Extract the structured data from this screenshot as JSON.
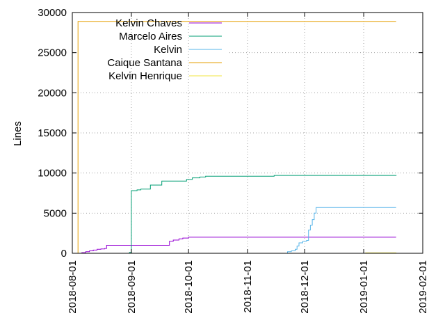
{
  "chart_data": {
    "type": "line",
    "title": "",
    "xlabel": "",
    "ylabel": "Lines",
    "ylim": [
      0,
      30000
    ],
    "xlim": [
      "2018-08-01",
      "2019-02-01"
    ],
    "yticks": [
      0,
      5000,
      10000,
      15000,
      20000,
      25000,
      30000
    ],
    "xticks": [
      "2018-08-01",
      "2018-09-01",
      "2018-10-01",
      "2018-11-01",
      "2018-12-01",
      "2019-01-01",
      "2019-02-01"
    ],
    "grid": true,
    "legend_position": "top-left",
    "series": [
      {
        "name": "Kelvin Chaves",
        "color": "#9400d3",
        "points": [
          [
            "2018-08-04",
            0
          ],
          [
            "2018-08-06",
            80
          ],
          [
            "2018-08-08",
            200
          ],
          [
            "2018-08-10",
            300
          ],
          [
            "2018-08-12",
            400
          ],
          [
            "2018-08-14",
            500
          ],
          [
            "2018-08-16",
            550
          ],
          [
            "2018-08-18",
            600
          ],
          [
            "2018-08-19",
            1000
          ],
          [
            "2018-09-20",
            1000
          ],
          [
            "2018-09-21",
            1500
          ],
          [
            "2018-09-23",
            1650
          ],
          [
            "2018-09-26",
            1800
          ],
          [
            "2018-09-28",
            1900
          ],
          [
            "2018-10-01",
            2000
          ],
          [
            "2019-01-18",
            2000
          ]
        ]
      },
      {
        "name": "Marcelo Aires",
        "color": "#009e73",
        "points": [
          [
            "2018-08-28",
            0
          ],
          [
            "2018-08-31",
            100
          ],
          [
            "2018-09-01",
            7800
          ],
          [
            "2018-09-04",
            7900
          ],
          [
            "2018-09-06",
            8000
          ],
          [
            "2018-09-11",
            8500
          ],
          [
            "2018-09-17",
            9000
          ],
          [
            "2018-09-30",
            9200
          ],
          [
            "2018-10-03",
            9400
          ],
          [
            "2018-10-07",
            9500
          ],
          [
            "2018-10-10",
            9600
          ],
          [
            "2018-11-15",
            9700
          ],
          [
            "2019-01-18",
            9750
          ]
        ]
      },
      {
        "name": "Kelvin",
        "color": "#56b4e9",
        "points": [
          [
            "2018-11-20",
            0
          ],
          [
            "2018-11-22",
            200
          ],
          [
            "2018-11-24",
            300
          ],
          [
            "2018-11-26",
            500
          ],
          [
            "2018-11-27",
            900
          ],
          [
            "2018-11-28",
            1300
          ],
          [
            "2018-11-30",
            1500
          ],
          [
            "2018-12-02",
            1600
          ],
          [
            "2018-12-03",
            2900
          ],
          [
            "2018-12-04",
            3500
          ],
          [
            "2018-12-05",
            4200
          ],
          [
            "2018-12-06",
            5000
          ],
          [
            "2018-12-07",
            5700
          ],
          [
            "2019-01-18",
            5700
          ]
        ]
      },
      {
        "name": "Caique Santana",
        "color": "#e69f00",
        "points": [
          [
            "2018-08-04",
            0
          ],
          [
            "2018-08-04",
            28900
          ],
          [
            "2019-01-18",
            28900
          ]
        ]
      },
      {
        "name": "Kelvin Henrique",
        "color": "#f0e442",
        "points": [
          [
            "2019-01-01",
            0
          ],
          [
            "2019-01-02",
            50
          ],
          [
            "2019-01-18",
            80
          ]
        ]
      }
    ]
  }
}
